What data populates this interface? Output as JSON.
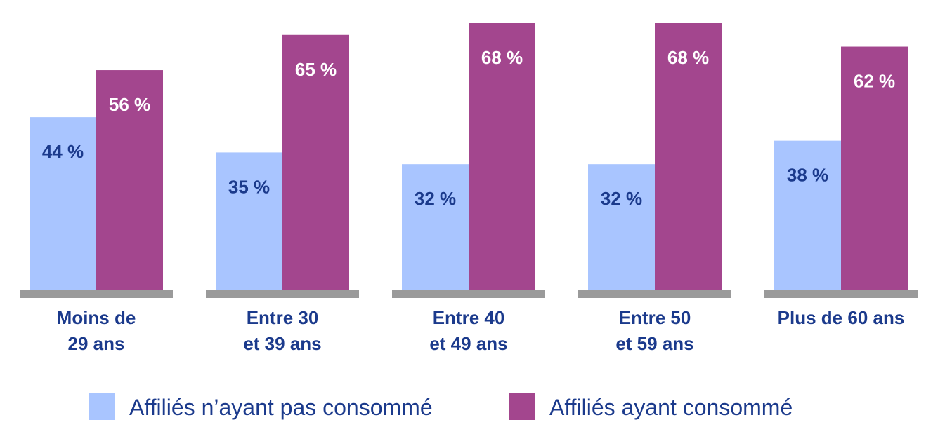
{
  "chart_data": {
    "type": "bar",
    "categories": [
      [
        "Moins de",
        "29 ans"
      ],
      [
        "Entre 30",
        "et 39 ans"
      ],
      [
        "Entre 40",
        "et 49 ans"
      ],
      [
        "Entre 50",
        "et 59 ans"
      ],
      [
        "Plus de 60 ans"
      ]
    ],
    "series": [
      {
        "name": "Affiliés n’ayant pas consommé",
        "values": [
          44,
          35,
          32,
          32,
          38
        ],
        "labels": [
          "44 %",
          "35 %",
          "32 %",
          "32 %",
          "38 %"
        ],
        "color": "#a9c5ff",
        "label_color": "#1b3a8c"
      },
      {
        "name": "Affiliés ayant consommé",
        "values": [
          56,
          65,
          68,
          68,
          62
        ],
        "labels": [
          "56 %",
          "65 %",
          "68 %",
          "68 %",
          "62 %"
        ],
        "color": "#a3468e",
        "label_color": "#ffffff"
      }
    ],
    "ylim": [
      0,
      68
    ],
    "baseline_color": "#9a9a9a",
    "text_color": "#1b3a8c",
    "grid": false,
    "legend_position": "bottom-center"
  }
}
